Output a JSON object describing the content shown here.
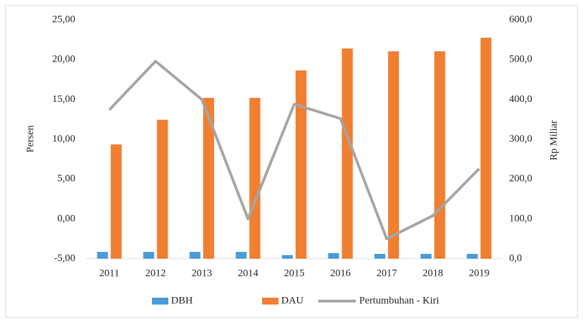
{
  "chart_data": {
    "type": "bar",
    "categories": [
      "2011",
      "2012",
      "2013",
      "2014",
      "2015",
      "2016",
      "2017",
      "2018",
      "2019"
    ],
    "series": [
      {
        "name": "DBH",
        "type": "bar",
        "axis": "y2",
        "color": "#4a9bd8",
        "values": [
          17,
          17,
          17,
          17,
          9,
          14,
          12,
          12,
          12
        ]
      },
      {
        "name": "DAU",
        "type": "bar",
        "axis": "y2",
        "color": "#f07f31",
        "values": [
          287,
          349,
          404,
          404,
          473,
          528,
          521,
          521,
          555
        ]
      },
      {
        "name": "Pertumbuhan - Kiri",
        "type": "line",
        "axis": "y",
        "color": "#a5a5a5",
        "values": [
          13.7,
          19.8,
          15.0,
          0.0,
          14.4,
          12.6,
          -2.5,
          0.4,
          6.3
        ]
      }
    ],
    "ylabel": "Persen",
    "y2label": "Rp Miliar",
    "ylim": [
      -5,
      25
    ],
    "yticks": [
      {
        "value": -5,
        "label": "-5,00"
      },
      {
        "value": 0,
        "label": "0,00"
      },
      {
        "value": 5,
        "label": "5,00"
      },
      {
        "value": 10,
        "label": "10,00"
      },
      {
        "value": 15,
        "label": "15,00"
      },
      {
        "value": 20,
        "label": "20,00"
      },
      {
        "value": 25,
        "label": "25,00"
      }
    ],
    "y2lim": [
      0,
      600
    ],
    "y2ticks": [
      {
        "value": 0,
        "label": "0,0"
      },
      {
        "value": 100,
        "label": "100,0"
      },
      {
        "value": 200,
        "label": "200,0"
      },
      {
        "value": 300,
        "label": "300,0"
      },
      {
        "value": 400,
        "label": "400,0"
      },
      {
        "value": 500,
        "label": "500,0"
      },
      {
        "value": 600,
        "label": "600,0"
      }
    ],
    "grid": false,
    "legend": "bottom"
  }
}
